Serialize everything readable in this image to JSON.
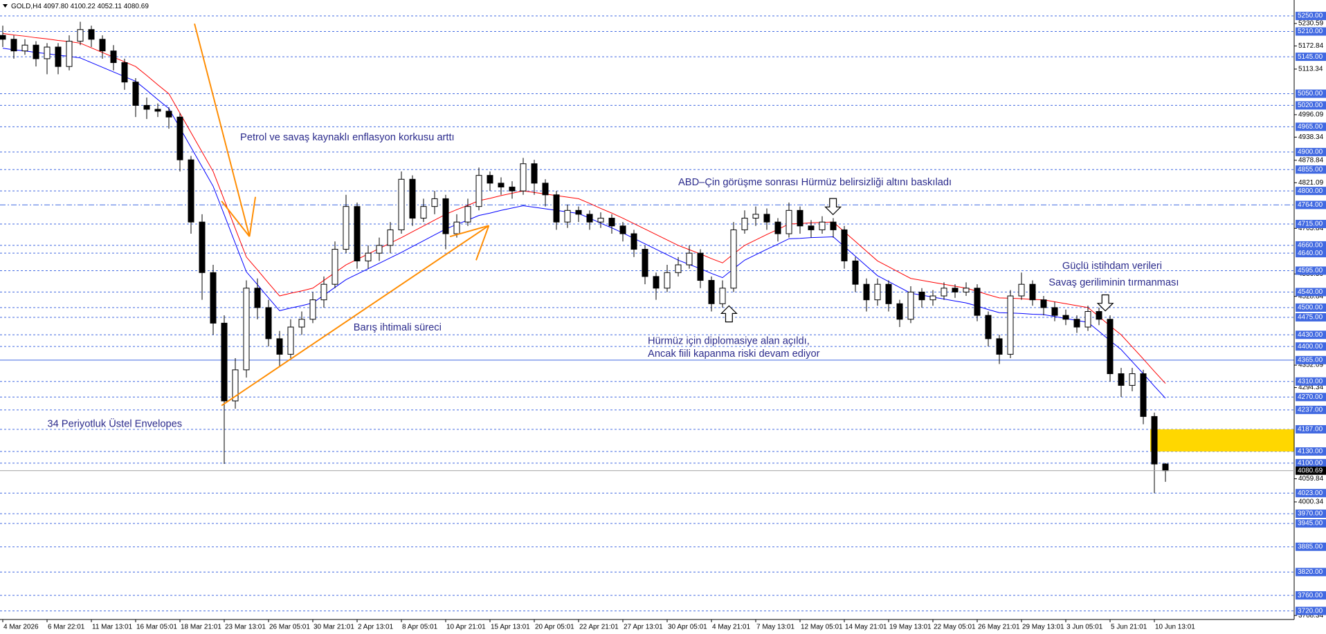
{
  "chart_data": {
    "type": "candlestick",
    "header": {
      "symbol": "GOLD,H4",
      "values": [
        "4097.80",
        "4100.22",
        "4052.11",
        "4080.69"
      ]
    },
    "categories": [
      "4 Mar 2026",
      null,
      null,
      null,
      "6 Mar 22:01",
      null,
      null,
      null,
      "11 Mar 13:01",
      null,
      null,
      null,
      "16 Mar 05:01",
      null,
      null,
      null,
      "18 Mar 21:01",
      null,
      null,
      null,
      "23 Mar 13:01",
      null,
      null,
      null,
      "26 Mar 05:01",
      null,
      null,
      null,
      "30 Mar 21:01",
      null,
      null,
      null,
      "2 Apr 13:01",
      null,
      null,
      null,
      "8 Apr 05:01",
      null,
      null,
      null,
      "10 Apr 21:01",
      null,
      null,
      null,
      "15 Apr 13:01",
      null,
      null,
      null,
      "20 Apr 05:01",
      null,
      null,
      null,
      "22 Apr 21:01",
      null,
      null,
      null,
      "27 Apr 13:01",
      null,
      null,
      null,
      "30 Apr 05:01",
      null,
      null,
      null,
      "4 May 21:01",
      null,
      null,
      null,
      "7 May 13:01",
      null,
      null,
      null,
      "12 May 05:01",
      null,
      null,
      null,
      "14 May 21:01",
      null,
      null,
      null,
      "19 May 13:01",
      null,
      null,
      null,
      "22 May 05:01",
      null,
      null,
      null,
      "26 May 21:01",
      null,
      null,
      null,
      "29 May 13:01",
      null,
      null,
      null,
      "3 Jun 05:01",
      null,
      null,
      null,
      "5 Jun 21:01",
      null,
      null,
      null,
      "10 Jun 13:01",
      null
    ],
    "open": [
      5200,
      5190,
      5160,
      5175,
      5140,
      5170,
      5120,
      5185,
      5215,
      5190,
      5160,
      5130,
      5080,
      5020,
      5010,
      5005,
      4990,
      4880,
      4720,
      4590,
      4460,
      4260,
      4340,
      4550,
      4500,
      4420,
      4380,
      4450,
      4470,
      4520,
      4560,
      4650,
      4760,
      4620,
      4640,
      4660,
      4700,
      4830,
      4730,
      4760,
      4780,
      4690,
      4720,
      4760,
      4840,
      4820,
      4810,
      4800,
      4870,
      4820,
      4790,
      4720,
      4750,
      4740,
      4720,
      4730,
      4710,
      4690,
      4650,
      4580,
      4550,
      4590,
      4610,
      4640,
      4570,
      4510,
      4550,
      4700,
      4730,
      4740,
      4720,
      4690,
      4750,
      4710,
      4700,
      4720,
      4700,
      4620,
      4560,
      4520,
      4560,
      4510,
      4470,
      4540,
      4520,
      4530,
      4550,
      4540,
      4550,
      4480,
      4420,
      4380,
      4530,
      4560,
      4520,
      4500,
      4480,
      4470,
      4450,
      4490,
      4470,
      4330,
      4300,
      4330,
      4220,
      4097.8
    ],
    "high": [
      5225,
      5200,
      5190,
      5185,
      5180,
      5180,
      5200,
      5235,
      5225,
      5200,
      5175,
      5140,
      5090,
      5040,
      5025,
      5015,
      5000,
      4890,
      4740,
      4610,
      4480,
      4370,
      4570,
      4575,
      4520,
      4440,
      4470,
      4490,
      4540,
      4580,
      4670,
      4790,
      4770,
      4660,
      4680,
      4720,
      4850,
      4840,
      4780,
      4800,
      4790,
      4740,
      4780,
      4860,
      4850,
      4835,
      4825,
      4885,
      4880,
      4830,
      4800,
      4765,
      4760,
      4750,
      4745,
      4740,
      4720,
      4700,
      4660,
      4590,
      4610,
      4630,
      4660,
      4650,
      4580,
      4570,
      4720,
      4750,
      4760,
      4755,
      4730,
      4770,
      4760,
      4725,
      4735,
      4730,
      4710,
      4630,
      4575,
      4575,
      4570,
      4520,
      4555,
      4550,
      4545,
      4565,
      4560,
      4565,
      4560,
      4490,
      4430,
      4545,
      4590,
      4570,
      4530,
      4515,
      4495,
      4480,
      4505,
      4500,
      4480,
      4345,
      4345,
      4340,
      4230,
      4100.22
    ],
    "low": [
      5170,
      5140,
      5150,
      5120,
      5100,
      5100,
      5110,
      5175,
      5170,
      5140,
      5110,
      5060,
      4990,
      4985,
      4990,
      4960,
      4850,
      4690,
      4520,
      4430,
      4098,
      4240,
      4320,
      4470,
      4400,
      4350,
      4370,
      4430,
      4460,
      4500,
      4550,
      4640,
      4600,
      4600,
      4620,
      4640,
      4690,
      4710,
      4720,
      4740,
      4650,
      4680,
      4710,
      4750,
      4800,
      4790,
      4780,
      4790,
      4790,
      4760,
      4700,
      4705,
      4720,
      4700,
      4705,
      4690,
      4670,
      4630,
      4560,
      4520,
      4540,
      4580,
      4600,
      4550,
      4490,
      4500,
      4540,
      4690,
      4710,
      4700,
      4670,
      4680,
      4690,
      4680,
      4690,
      4680,
      4600,
      4540,
      4490,
      4505,
      4490,
      4450,
      4460,
      4500,
      4505,
      4520,
      4525,
      4530,
      4465,
      4400,
      4355,
      4370,
      4520,
      4505,
      4480,
      4465,
      4455,
      4435,
      4440,
      4455,
      4310,
      4270,
      4285,
      4200,
      4023,
      4052.11
    ],
    "close": [
      5190,
      5160,
      5175,
      5140,
      5170,
      5120,
      5185,
      5215,
      5190,
      5160,
      5130,
      5080,
      5020,
      5010,
      5005,
      4990,
      4880,
      4720,
      4590,
      4460,
      4260,
      4340,
      4550,
      4500,
      4420,
      4380,
      4450,
      4470,
      4520,
      4560,
      4650,
      4760,
      4620,
      4640,
      4660,
      4700,
      4830,
      4730,
      4760,
      4780,
      4690,
      4720,
      4760,
      4840,
      4820,
      4810,
      4800,
      4870,
      4820,
      4790,
      4720,
      4750,
      4740,
      4720,
      4730,
      4710,
      4690,
      4650,
      4580,
      4550,
      4590,
      4610,
      4640,
      4570,
      4510,
      4550,
      4700,
      4730,
      4740,
      4720,
      4690,
      4750,
      4710,
      4700,
      4720,
      4700,
      4620,
      4560,
      4520,
      4560,
      4510,
      4470,
      4540,
      4520,
      4530,
      4550,
      4540,
      4550,
      4480,
      4420,
      4380,
      4530,
      4560,
      4520,
      4500,
      4480,
      4470,
      4450,
      4490,
      4470,
      4330,
      4300,
      4330,
      4220,
      4097.8,
      4080.69
    ],
    "envelope": {
      "upper": {
        "color": "#ff0000",
        "values": [
          5205,
          5201,
          5198,
          5194,
          5191,
          5187,
          5184,
          5180,
          5168,
          5156,
          5144,
          5132,
          5120,
          5097,
          5073,
          5050,
          5000,
          4950,
          4900,
          4850,
          4777,
          4703,
          4630,
          4597,
          4563,
          4530,
          4537,
          4543,
          4550,
          4570,
          4590,
          4610,
          4624,
          4638,
          4652,
          4666,
          4680,
          4695,
          4710,
          4725,
          4740,
          4752,
          4763,
          4775,
          4781,
          4788,
          4794,
          4800,
          4796,
          4792,
          4788,
          4784,
          4780,
          4768,
          4755,
          4743,
          4730,
          4716,
          4702,
          4688,
          4674,
          4660,
          4649,
          4638,
          4626,
          4615,
          4638,
          4660,
          4674,
          4688,
          4701,
          4715,
          4716,
          4718,
          4719,
          4720,
          4695,
          4670,
          4645,
          4620,
          4605,
          4590,
          4575,
          4570,
          4565,
          4560,
          4555,
          4550,
          4542,
          4533,
          4525,
          4524,
          4523,
          4521,
          4520,
          4515,
          4510,
          4505,
          4500,
          4477,
          4453,
          4430,
          4399,
          4368,
          4336,
          4305
        ]
      },
      "lower": {
        "color": "#0000ff",
        "values": [
          5167,
          5163,
          5160,
          5156,
          5153,
          5149,
          5146,
          5142,
          5130,
          5118,
          5106,
          5094,
          5082,
          5059,
          5035,
          5012,
          4962,
          4912,
          4862,
          4812,
          4739,
          4665,
          4592,
          4559,
          4525,
          4492,
          4499,
          4505,
          4512,
          4532,
          4552,
          4572,
          4586,
          4600,
          4614,
          4628,
          4642,
          4657,
          4672,
          4687,
          4702,
          4714,
          4725,
          4737,
          4743,
          4750,
          4756,
          4762,
          4758,
          4754,
          4750,
          4746,
          4742,
          4730,
          4717,
          4705,
          4692,
          4678,
          4664,
          4650,
          4636,
          4622,
          4611,
          4600,
          4588,
          4577,
          4600,
          4622,
          4636,
          4650,
          4663,
          4677,
          4678,
          4680,
          4681,
          4682,
          4657,
          4632,
          4607,
          4582,
          4567,
          4552,
          4537,
          4532,
          4527,
          4522,
          4517,
          4512,
          4504,
          4495,
          4487,
          4486,
          4485,
          4483,
          4482,
          4477,
          4472,
          4467,
          4462,
          4439,
          4415,
          4392,
          4361,
          4330,
          4298,
          4267
        ]
      }
    },
    "ylim": [
      3698,
      5291
    ],
    "yticks": [
      5230.59,
      5172.84,
      5113.34,
      4996.09,
      4938.34,
      4878.84,
      4821.09,
      4703.84,
      4586.59,
      4528.84,
      4352.09,
      4294.34,
      4059.84,
      4000.34,
      3708.34
    ],
    "levels": [
      {
        "value": 5250,
        "label": "5250.00"
      },
      {
        "value": 5210,
        "label": "5210.00"
      },
      {
        "value": 5145,
        "label": "5145.00"
      },
      {
        "value": 5050,
        "label": "5050.00"
      },
      {
        "value": 5020,
        "label": "5020.00"
      },
      {
        "value": 4965,
        "label": "4965.00"
      },
      {
        "value": 4900,
        "label": "4900.00"
      },
      {
        "value": 4855,
        "label": "4855.00"
      },
      {
        "value": 4800,
        "label": "4800.00"
      },
      {
        "value": 4764,
        "label": "4764.00",
        "style": "dashdot"
      },
      {
        "value": 4715,
        "label": "4715.00"
      },
      {
        "value": 4660,
        "label": "4660.00"
      },
      {
        "value": 4640,
        "label": "4640.00"
      },
      {
        "value": 4595,
        "label": "4595.00"
      },
      {
        "value": 4540,
        "label": "4540.00"
      },
      {
        "value": 4500,
        "label": "4500.00"
      },
      {
        "value": 4475,
        "label": "4475.00"
      },
      {
        "value": 4430,
        "label": "4430.00"
      },
      {
        "value": 4400,
        "label": "4400.00"
      },
      {
        "value": 4365,
        "label": "4365.00",
        "style": "solid"
      },
      {
        "value": 4310,
        "label": "4310.00"
      },
      {
        "value": 4270,
        "label": "4270.00"
      },
      {
        "value": 4237,
        "label": "4237.00"
      },
      {
        "value": 4187,
        "label": "4187.00"
      },
      {
        "value": 4130,
        "label": "4130.00"
      },
      {
        "value": 4100,
        "label": "4100.00"
      },
      {
        "value": 4023,
        "label": "4023.00"
      },
      {
        "value": 3970,
        "label": "3970.00"
      },
      {
        "value": 3945,
        "label": "3945.00"
      },
      {
        "value": 3885,
        "label": "3885.00"
      },
      {
        "value": 3820,
        "label": "3820.00"
      },
      {
        "value": 3760,
        "label": "3760.00"
      },
      {
        "value": 3720,
        "label": "3720.00"
      }
    ],
    "level_color": "#4169e1",
    "zone": {
      "ylim": [
        4130,
        4187
      ],
      "color": "#ffd700"
    },
    "annotations": [
      "Petrol ve savaş kaynaklı enflasyon korkusu arttı",
      "ABD–Çin görüşme sonrası Hürmüz belirsizliği altını baskıladı",
      "Güçlü istihdam verileri",
      "Savaş geriliminin tırmanması",
      "Barış ihtimali süreci",
      "Hürmüz için diplomasiye alan açıldı,",
      "Ancak fiili kapanma riski devam ediyor",
      "34 Periyotluk Üstel Envelopes"
    ]
  }
}
